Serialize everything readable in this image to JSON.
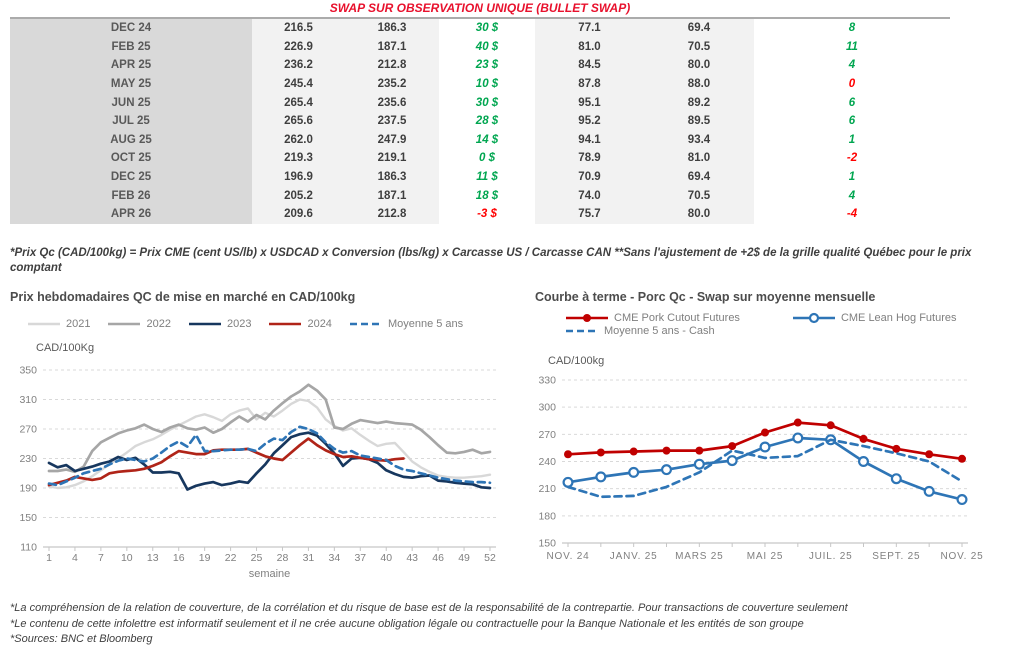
{
  "table": {
    "title": "SWAP SUR OBSERVATION UNIQUE (BULLET SWAP)",
    "footnote": "*Prix Qc (CAD/100kg) = Prix CME (cent US/lb) x USDCAD x Conversion (lbs/kg) x Carcasse US / Carcasse CAN **Sans l'ajustement de +2$ de la grille qualité Québec pour le prix comptant",
    "rows": [
      {
        "month": "DEC 24",
        "qc_forward": "216.5",
        "qc_avg5": "186.3",
        "diff_qc": "30 $",
        "diff_qc_color": "pos",
        "us_forward": "77.1",
        "us_avg5": "69.4",
        "diff_us": "8",
        "diff_us_color": "pos"
      },
      {
        "month": "FEB 25",
        "qc_forward": "226.9",
        "qc_avg5": "187.1",
        "diff_qc": "40 $",
        "diff_qc_color": "pos",
        "us_forward": "81.0",
        "us_avg5": "70.5",
        "diff_us": "11",
        "diff_us_color": "pos"
      },
      {
        "month": "APR 25",
        "qc_forward": "236.2",
        "qc_avg5": "212.8",
        "diff_qc": "23 $",
        "diff_qc_color": "pos",
        "us_forward": "84.5",
        "us_avg5": "80.0",
        "diff_us": "4",
        "diff_us_color": "pos"
      },
      {
        "month": "MAY 25",
        "qc_forward": "245.4",
        "qc_avg5": "235.2",
        "diff_qc": "10 $",
        "diff_qc_color": "pos",
        "us_forward": "87.8",
        "us_avg5": "88.0",
        "diff_us": "0",
        "diff_us_color": "neg"
      },
      {
        "month": "JUN 25",
        "qc_forward": "265.4",
        "qc_avg5": "235.6",
        "diff_qc": "30 $",
        "diff_qc_color": "pos",
        "us_forward": "95.1",
        "us_avg5": "89.2",
        "diff_us": "6",
        "diff_us_color": "pos"
      },
      {
        "month": "JUL 25",
        "qc_forward": "265.6",
        "qc_avg5": "237.5",
        "diff_qc": "28 $",
        "diff_qc_color": "pos",
        "us_forward": "95.2",
        "us_avg5": "89.5",
        "diff_us": "6",
        "diff_us_color": "pos"
      },
      {
        "month": "AUG 25",
        "qc_forward": "262.0",
        "qc_avg5": "247.9",
        "diff_qc": "14 $",
        "diff_qc_color": "pos",
        "us_forward": "94.1",
        "us_avg5": "93.4",
        "diff_us": "1",
        "diff_us_color": "pos"
      },
      {
        "month": "OCT 25",
        "qc_forward": "219.3",
        "qc_avg5": "219.1",
        "diff_qc": "0 $",
        "diff_qc_color": "pos",
        "us_forward": "78.9",
        "us_avg5": "81.0",
        "diff_us": "-2",
        "diff_us_color": "neg"
      },
      {
        "month": "DEC 25",
        "qc_forward": "196.9",
        "qc_avg5": "186.3",
        "diff_qc": "11 $",
        "diff_qc_color": "pos",
        "us_forward": "70.9",
        "us_avg5": "69.4",
        "diff_us": "1",
        "diff_us_color": "pos"
      },
      {
        "month": "FEB 26",
        "qc_forward": "205.2",
        "qc_avg5": "187.1",
        "diff_qc": "18 $",
        "diff_qc_color": "pos",
        "us_forward": "74.0",
        "us_avg5": "70.5",
        "diff_us": "4",
        "diff_us_color": "pos"
      },
      {
        "month": "APR 26",
        "qc_forward": "209.6",
        "qc_avg5": "212.8",
        "diff_qc": "-3 $",
        "diff_qc_color": "neg",
        "us_forward": "75.7",
        "us_avg5": "80.0",
        "diff_us": "-4",
        "diff_us_color": "neg"
      }
    ]
  },
  "colors": {
    "title_red": "#e8112d",
    "positive_green": "#00a650",
    "negative_red": "#ff0000"
  },
  "chart_data": [
    {
      "type": "line",
      "title": "Prix hebdomadaires QC de mise en marché en CAD/100kg",
      "ylabel": "CAD/100Kg",
      "xlabel": "semaine",
      "ylim": [
        110,
        350
      ],
      "yticks": [
        110,
        150,
        190,
        230,
        270,
        310,
        350
      ],
      "grid": "dashed-horizontal",
      "legend_position": "top",
      "n_points": 52,
      "xticks": [
        [
          0,
          "1"
        ],
        [
          3,
          "4"
        ],
        [
          6,
          "7"
        ],
        [
          9,
          "10"
        ],
        [
          12,
          "13"
        ],
        [
          15,
          "16"
        ],
        [
          18,
          "19"
        ],
        [
          21,
          "22"
        ],
        [
          24,
          "25"
        ],
        [
          27,
          "28"
        ],
        [
          30,
          "31"
        ],
        [
          33,
          "34"
        ],
        [
          36,
          "37"
        ],
        [
          39,
          "40"
        ],
        [
          42,
          "43"
        ],
        [
          45,
          "46"
        ],
        [
          48,
          "49"
        ],
        [
          51,
          "52"
        ]
      ],
      "series": [
        {
          "name": "2021",
          "color": "#d8d8d8",
          "values": [
            192,
            190,
            191,
            194,
            199,
            206,
            214,
            222,
            230,
            238,
            247,
            252,
            256,
            262,
            269,
            275,
            281,
            287,
            290,
            286,
            281,
            290,
            295,
            298,
            283,
            292,
            287,
            295,
            304,
            310,
            308,
            299,
            283,
            274,
            268,
            271,
            262,
            254,
            247,
            250,
            251,
            239,
            226,
            218,
            212,
            207,
            205,
            204,
            204,
            205,
            206,
            208
          ]
        },
        {
          "name": "2022",
          "color": "#a6a6a6",
          "values": [
            213,
            213,
            215,
            212,
            219,
            240,
            252,
            258,
            264,
            268,
            271,
            276,
            270,
            266,
            272,
            276,
            271,
            269,
            272,
            265,
            270,
            279,
            287,
            280,
            289,
            283,
            295,
            305,
            314,
            321,
            330,
            322,
            310,
            272,
            270,
            277,
            282,
            280,
            278,
            280,
            278,
            277,
            276,
            269,
            259,
            248,
            238,
            237,
            239,
            242,
            237,
            239
          ]
        },
        {
          "name": "2023",
          "color": "#17375e",
          "values": [
            224,
            218,
            221,
            213,
            216,
            219,
            223,
            226,
            232,
            228,
            231,
            222,
            211,
            211,
            212,
            210,
            188,
            193,
            196,
            198,
            194,
            196,
            199,
            197,
            210,
            222,
            237,
            248,
            259,
            263,
            265,
            261,
            250,
            237,
            220,
            230,
            231,
            229,
            224,
            214,
            209,
            205,
            204,
            206,
            207,
            200,
            199,
            197,
            196,
            195,
            191,
            190
          ]
        },
        {
          "name": "2024",
          "color": "#b02418",
          "values": [
            194,
            197,
            200,
            205,
            203,
            201,
            203,
            210,
            212,
            213,
            214,
            216,
            220,
            225,
            233,
            240,
            238,
            236,
            236,
            241,
            242,
            242,
            242,
            243,
            238,
            233,
            230,
            228,
            238,
            248,
            257,
            248,
            241,
            236,
            232,
            233,
            231,
            229,
            228,
            227,
            229,
            230,
            null,
            null,
            null,
            null,
            null,
            null,
            null,
            null,
            null,
            null
          ]
        },
        {
          "name": "Moyenne 5 ans",
          "color": "#2e75b6",
          "dash": true,
          "values": [
            196,
            194,
            199,
            204,
            210,
            213,
            216,
            222,
            227,
            230,
            228,
            226,
            230,
            238,
            247,
            253,
            246,
            262,
            240,
            240,
            241,
            242,
            242,
            243,
            240,
            250,
            257,
            255,
            266,
            273,
            270,
            264,
            252,
            243,
            238,
            240,
            234,
            232,
            230,
            228,
            220,
            215,
            213,
            210,
            207,
            204,
            202,
            200,
            199,
            198,
            198,
            197
          ]
        }
      ]
    },
    {
      "type": "line",
      "title": "Courbe à terme - Porc Qc - Swap sur moyenne mensuelle",
      "ylabel": "CAD/100kg",
      "xlabel": "",
      "ylim": [
        150,
        330
      ],
      "yticks": [
        150,
        180,
        210,
        240,
        270,
        300,
        330
      ],
      "grid": "dashed-horizontal",
      "legend_position": "top",
      "n_points": 13,
      "tick_every_point": true,
      "letter_spaced_xlabels": true,
      "xticks": [
        [
          0,
          "NOV. 24"
        ],
        [
          2,
          "JANV. 25"
        ],
        [
          4,
          "MARS 25"
        ],
        [
          6,
          "MAI 25"
        ],
        [
          8,
          "JUIL. 25"
        ],
        [
          10,
          "SEPT. 25"
        ],
        [
          12,
          "NOV. 25"
        ]
      ],
      "series": [
        {
          "name": "CME Pork Cutout Futures",
          "color": "#c00000",
          "marker": "filled",
          "values": [
            248,
            250,
            251,
            252,
            252,
            257,
            272,
            283,
            280,
            265,
            254,
            248,
            243
          ]
        },
        {
          "name": "CME Lean Hog Futures",
          "color": "#2e75b6",
          "marker": "open",
          "values": [
            217,
            223,
            228,
            231,
            237,
            241,
            256,
            266,
            264,
            240,
            221,
            207,
            198
          ]
        },
        {
          "name": "Moyenne 5 ans - Cash",
          "color": "#2e75b6",
          "dash": true,
          "values": [
            212,
            201,
            202,
            212,
            228,
            252,
            244,
            246,
            264,
            257,
            249,
            240,
            218
          ]
        }
      ]
    }
  ],
  "footnotes": [
    "*La compréhension de la relation de couverture, de la corrélation et du risque de base est de la responsabilité de la contrepartie. Pour transactions de couverture seulement",
    "*Le contenu de cette infolettre est informatif seulement et il ne crée aucune obligation légale ou contractuelle pour la Banque Nationale et les entités de son groupe",
    "*Sources: BNC et Bloomberg"
  ]
}
